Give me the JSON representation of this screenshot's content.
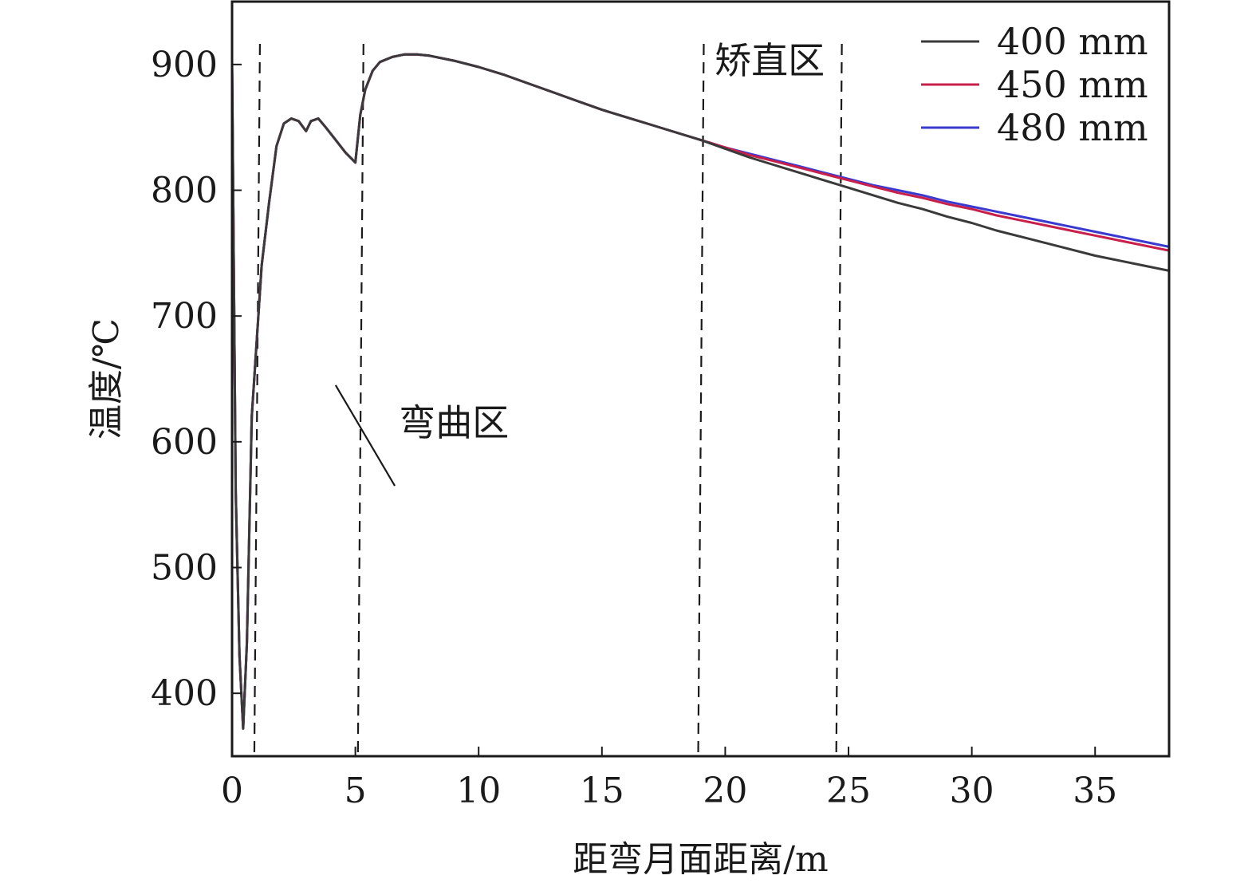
{
  "chart_data": {
    "type": "line",
    "title": "",
    "xlabel": "距弯月面距离/m",
    "ylabel": "温度/℃",
    "xlim": [
      0,
      38
    ],
    "ylim": [
      350,
      950
    ],
    "xticks": [
      0,
      5,
      10,
      15,
      20,
      25,
      30,
      35
    ],
    "yticks": [
      400,
      500,
      600,
      700,
      800,
      900
    ],
    "grid": false,
    "legend_position": "top-right",
    "series": [
      {
        "name": "400 mm",
        "color": "#3a3a3a",
        "x": [
          0,
          0.15,
          0.3,
          0.45,
          0.6,
          0.8,
          1.0,
          1.2,
          1.5,
          1.8,
          2.1,
          2.4,
          2.7,
          3.0,
          3.2,
          3.5,
          3.8,
          4.2,
          4.6,
          5.0,
          5.2,
          5.4,
          5.7,
          6.0,
          6.5,
          7.0,
          7.5,
          8,
          9,
          10,
          11,
          12,
          13,
          14,
          15,
          16,
          17,
          18,
          19,
          20,
          21,
          22,
          23,
          24,
          25,
          26,
          27,
          28,
          29,
          30,
          31,
          32,
          33,
          34,
          35,
          36,
          37,
          38
        ],
        "y": [
          900,
          560,
          430,
          372,
          440,
          620,
          680,
          740,
          790,
          835,
          853,
          857,
          855,
          847,
          855,
          857,
          850,
          840,
          830,
          822,
          860,
          880,
          895,
          902,
          906,
          908,
          908,
          907,
          903,
          898,
          892,
          885,
          878,
          871,
          864,
          858,
          852,
          846,
          840,
          833,
          826,
          820,
          814,
          808,
          802,
          796,
          790,
          785,
          779,
          774,
          768,
          763,
          758,
          753,
          748,
          744,
          740,
          736
        ]
      },
      {
        "name": "450 mm",
        "color": "#c8204a",
        "x": [
          0,
          0.15,
          0.3,
          0.45,
          0.6,
          0.8,
          1.0,
          1.2,
          1.5,
          1.8,
          2.1,
          2.4,
          2.7,
          3.0,
          3.2,
          3.5,
          3.8,
          4.2,
          4.6,
          5.0,
          5.2,
          5.4,
          5.7,
          6.0,
          6.5,
          7.0,
          7.5,
          8,
          9,
          10,
          11,
          12,
          13,
          14,
          15,
          16,
          17,
          18,
          19,
          20,
          21,
          22,
          23,
          24,
          25,
          26,
          27,
          28,
          29,
          30,
          31,
          32,
          33,
          34,
          35,
          36,
          37,
          38
        ],
        "y": [
          900,
          560,
          430,
          372,
          440,
          620,
          680,
          740,
          790,
          835,
          853,
          857,
          855,
          847,
          855,
          857,
          850,
          840,
          830,
          822,
          860,
          880,
          895,
          902,
          906,
          908,
          908,
          907,
          903,
          898,
          892,
          885,
          878,
          871,
          864,
          858,
          852,
          846,
          840,
          834,
          828,
          823,
          818,
          813,
          808,
          803,
          798,
          794,
          789,
          785,
          780,
          776,
          772,
          768,
          764,
          760,
          756,
          752
        ]
      },
      {
        "name": "480 mm",
        "color": "#3a3ad0",
        "x": [
          0,
          0.15,
          0.3,
          0.45,
          0.6,
          0.8,
          1.0,
          1.2,
          1.5,
          1.8,
          2.1,
          2.4,
          2.7,
          3.0,
          3.2,
          3.5,
          3.8,
          4.2,
          4.6,
          5.0,
          5.2,
          5.4,
          5.7,
          6.0,
          6.5,
          7.0,
          7.5,
          8,
          9,
          10,
          11,
          12,
          13,
          14,
          15,
          16,
          17,
          18,
          19,
          20,
          21,
          22,
          23,
          24,
          25,
          26,
          27,
          28,
          29,
          30,
          31,
          32,
          33,
          34,
          35,
          36,
          37,
          38
        ],
        "y": [
          900,
          560,
          430,
          372,
          440,
          620,
          680,
          740,
          790,
          835,
          853,
          857,
          855,
          847,
          855,
          857,
          850,
          840,
          830,
          822,
          860,
          880,
          895,
          902,
          906,
          908,
          908,
          907,
          903,
          898,
          892,
          885,
          878,
          871,
          864,
          858,
          852,
          846,
          840,
          834,
          829,
          824,
          819,
          814,
          809,
          804,
          800,
          796,
          791,
          787,
          783,
          779,
          775,
          771,
          767,
          763,
          759,
          755
        ]
      }
    ],
    "reference_lines_x": [
      1.0,
      5.2,
      19.0,
      24.6
    ],
    "annotations": [
      {
        "text": "弯曲区",
        "x": 9.0,
        "y": 605
      },
      {
        "text": "矫直区",
        "x": 21.8,
        "y": 893
      }
    ],
    "leader_line": {
      "from": [
        4.2,
        645
      ],
      "to": [
        6.6,
        565
      ]
    }
  }
}
